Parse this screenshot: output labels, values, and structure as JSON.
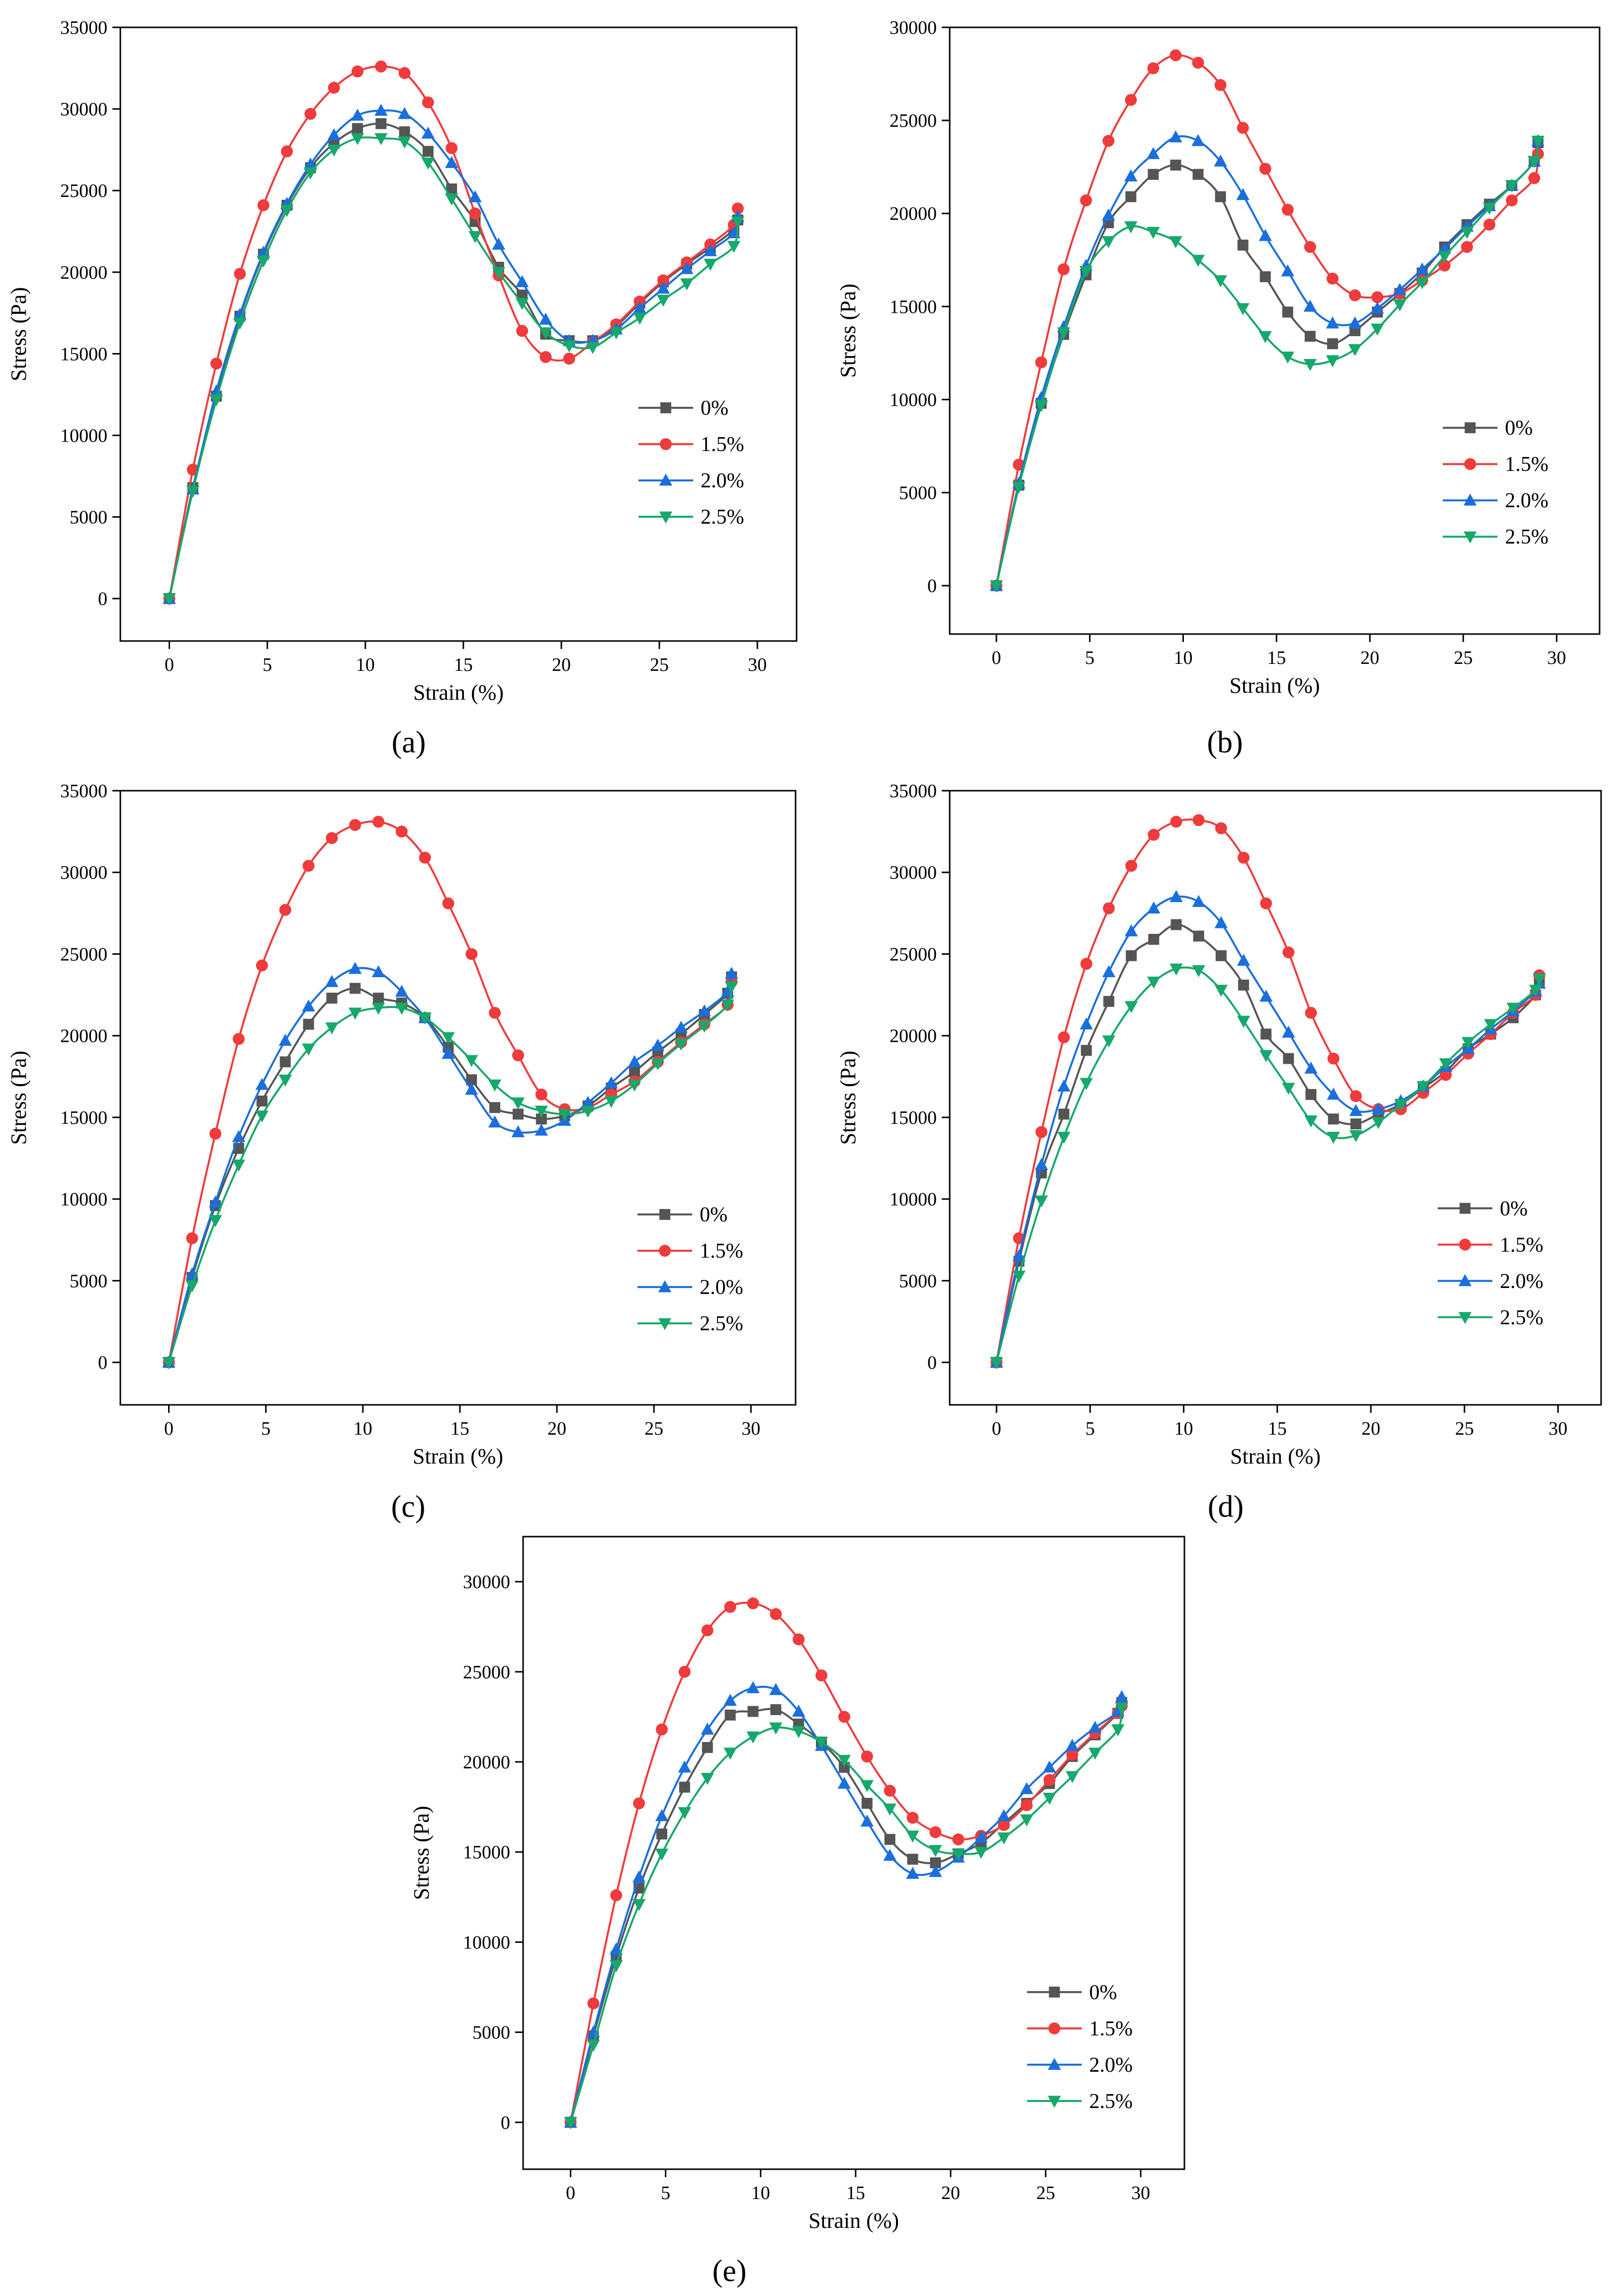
{
  "styles": {
    "colors": {
      "0%": "#555555",
      "1.5%": "#ef3b3b",
      "2.0%": "#1a6fdc",
      "2.5%": "#17a86b"
    },
    "markers": {
      "0%": "square",
      "1.5%": "circle",
      "2.0%": "triangle-up",
      "2.5%": "triangle-down"
    }
  },
  "chart_data": [
    {
      "label": "(a)",
      "type": "line",
      "xlabel": "Strain (%)",
      "ylabel": "Stress (Pa)",
      "xlim": [
        -2.5,
        32
      ],
      "ylim": [
        -2600,
        35000
      ],
      "xticks": [
        0,
        5,
        10,
        15,
        20,
        25,
        30
      ],
      "yticks": [
        0,
        5000,
        10000,
        15000,
        20000,
        25000,
        30000,
        35000
      ],
      "legend_position": "right-middle",
      "legend_anchor": [
        0.95,
        0.62
      ],
      "x": [
        0,
        1.2,
        2.4,
        3.6,
        4.8,
        6.0,
        7.2,
        8.4,
        9.6,
        10.8,
        12.0,
        13.2,
        14.4,
        15.6,
        16.8,
        18.0,
        19.2,
        20.4,
        21.6,
        22.8,
        24.0,
        25.2,
        26.4,
        27.6,
        28.8,
        29.0
      ],
      "series": [
        {
          "name": "0%",
          "values": [
            0,
            6800,
            12400,
            17300,
            21100,
            24100,
            26400,
            27900,
            28800,
            29100,
            28600,
            27400,
            25100,
            23100,
            20300,
            18600,
            16200,
            15800,
            15800,
            16700,
            18100,
            19400,
            20500,
            21500,
            22600,
            23200
          ]
        },
        {
          "name": "1.5%",
          "values": [
            0,
            7900,
            14400,
            19900,
            24100,
            27400,
            29700,
            31300,
            32300,
            32600,
            32200,
            30400,
            27600,
            23600,
            19800,
            16400,
            14800,
            14700,
            15700,
            16800,
            18200,
            19500,
            20600,
            21700,
            22900,
            23900
          ]
        },
        {
          "name": "2.0%",
          "values": [
            0,
            6700,
            12700,
            17400,
            21200,
            24200,
            26600,
            28400,
            29600,
            29900,
            29700,
            28500,
            26700,
            24600,
            21700,
            19400,
            17100,
            15800,
            15800,
            16500,
            17800,
            19000,
            20200,
            21300,
            22400,
            23400
          ]
        },
        {
          "name": "2.5%",
          "values": [
            0,
            6600,
            12200,
            16900,
            20700,
            23800,
            26100,
            27500,
            28200,
            28200,
            28000,
            26700,
            24500,
            22200,
            20000,
            18100,
            16300,
            15500,
            15400,
            16300,
            17200,
            18300,
            19300,
            20500,
            21600,
            23100
          ]
        }
      ]
    },
    {
      "label": "(b)",
      "type": "line",
      "xlabel": "Strain (%)",
      "ylabel": "Stress (Pa)",
      "xlim": [
        -2.5,
        32.3
      ],
      "ylim": [
        -2600,
        30000
      ],
      "xticks": [
        0,
        5,
        10,
        15,
        20,
        25,
        30
      ],
      "yticks": [
        0,
        5000,
        10000,
        15000,
        20000,
        25000,
        30000
      ],
      "legend_position": "right-middle",
      "legend_anchor": [
        0.95,
        0.66
      ],
      "x": [
        0,
        1.2,
        2.4,
        3.6,
        4.8,
        6.0,
        7.2,
        8.4,
        9.6,
        10.8,
        12.0,
        13.2,
        14.4,
        15.6,
        16.8,
        18.0,
        19.2,
        20.4,
        21.6,
        22.8,
        24.0,
        25.2,
        26.4,
        27.6,
        28.8,
        29.0
      ],
      "series": [
        {
          "name": "0%",
          "values": [
            0,
            5400,
            9800,
            13500,
            16700,
            19500,
            20900,
            22100,
            22600,
            22100,
            20900,
            18300,
            16600,
            14700,
            13400,
            13000,
            13700,
            14700,
            15700,
            16800,
            18200,
            19400,
            20500,
            21500,
            22800,
            23800
          ]
        },
        {
          "name": "1.5%",
          "values": [
            0,
            6500,
            12000,
            17000,
            20700,
            23900,
            26100,
            27800,
            28500,
            28100,
            26900,
            24600,
            22400,
            20200,
            18200,
            16500,
            15600,
            15500,
            15700,
            16400,
            17200,
            18200,
            19400,
            20700,
            21900,
            23200
          ]
        },
        {
          "name": "2.0%",
          "values": [
            0,
            5500,
            10100,
            13900,
            17200,
            19900,
            22000,
            23200,
            24100,
            23900,
            22800,
            21000,
            18800,
            16900,
            15000,
            14100,
            14100,
            14900,
            15900,
            17000,
            18100,
            19300,
            20400,
            21500,
            22800,
            23900
          ]
        },
        {
          "name": "2.5%",
          "values": [
            0,
            5300,
            9700,
            13600,
            16900,
            18500,
            19300,
            19000,
            18500,
            17500,
            16400,
            14900,
            13400,
            12300,
            11900,
            12100,
            12700,
            13800,
            15100,
            16300,
            17700,
            19000,
            20300,
            21500,
            22800,
            23900
          ]
        }
      ]
    },
    {
      "label": "(c)",
      "type": "line",
      "xlabel": "Strain (%)",
      "ylabel": "Stress (Pa)",
      "xlim": [
        -2.5,
        32.3
      ],
      "ylim": [
        -2600,
        35000
      ],
      "xticks": [
        0,
        5,
        10,
        15,
        20,
        25,
        30
      ],
      "yticks": [
        0,
        5000,
        10000,
        15000,
        20000,
        25000,
        30000,
        35000
      ],
      "legend_position": "right-middle",
      "legend_anchor": [
        0.95,
        0.69
      ],
      "x": [
        0,
        1.2,
        2.4,
        3.6,
        4.8,
        6.0,
        7.2,
        8.4,
        9.6,
        10.8,
        12.0,
        13.2,
        14.4,
        15.6,
        16.8,
        18.0,
        19.2,
        20.4,
        21.6,
        22.8,
        24.0,
        25.2,
        26.4,
        27.6,
        28.8,
        29.0
      ],
      "series": [
        {
          "name": "0%",
          "values": [
            0,
            5200,
            9600,
            13100,
            16000,
            18400,
            20700,
            22300,
            22900,
            22300,
            22000,
            21100,
            19300,
            17300,
            15600,
            15200,
            14900,
            15100,
            15700,
            16800,
            17800,
            19000,
            20100,
            21300,
            22600,
            23600
          ]
        },
        {
          "name": "1.5%",
          "values": [
            0,
            7600,
            14000,
            19800,
            24300,
            27700,
            30400,
            32100,
            32900,
            33100,
            32500,
            30900,
            28100,
            25000,
            21400,
            18800,
            16400,
            15500,
            15600,
            16400,
            17200,
            18400,
            19600,
            20700,
            21900,
            23300
          ]
        },
        {
          "name": "2.0%",
          "values": [
            0,
            5400,
            9800,
            13800,
            17000,
            19700,
            21800,
            23300,
            24100,
            23900,
            22700,
            21100,
            18900,
            16700,
            14700,
            14100,
            14200,
            14800,
            15900,
            17100,
            18400,
            19400,
            20500,
            21500,
            22700,
            23800
          ]
        },
        {
          "name": "2.5%",
          "values": [
            0,
            4700,
            8700,
            12100,
            15100,
            17300,
            19200,
            20500,
            21400,
            21700,
            21700,
            21100,
            19900,
            18500,
            17000,
            15900,
            15400,
            15200,
            15400,
            16000,
            17000,
            18300,
            19500,
            20600,
            21900,
            23000
          ]
        }
      ]
    },
    {
      "label": "(d)",
      "type": "line",
      "xlabel": "Strain (%)",
      "ylabel": "Stress (Pa)",
      "xlim": [
        -2.5,
        32.3
      ],
      "ylim": [
        -2600,
        35000
      ],
      "xticks": [
        0,
        5,
        10,
        15,
        20,
        25,
        30
      ],
      "yticks": [
        0,
        5000,
        10000,
        15000,
        20000,
        25000,
        30000,
        35000
      ],
      "legend_position": "right-middle",
      "legend_anchor": [
        0.94,
        0.68
      ],
      "x": [
        0,
        1.2,
        2.4,
        3.6,
        4.8,
        6.0,
        7.2,
        8.4,
        9.6,
        10.8,
        12.0,
        13.2,
        14.4,
        15.6,
        16.8,
        18.0,
        19.2,
        20.4,
        21.6,
        22.8,
        24.0,
        25.2,
        26.4,
        27.6,
        28.8,
        29.0
      ],
      "series": [
        {
          "name": "0%",
          "values": [
            0,
            6200,
            11600,
            15200,
            19100,
            22100,
            24900,
            25900,
            26800,
            26100,
            24900,
            23100,
            20100,
            18600,
            16400,
            14900,
            14600,
            15200,
            15800,
            16800,
            17800,
            19200,
            20100,
            21100,
            22500,
            23400
          ]
        },
        {
          "name": "1.5%",
          "values": [
            0,
            7600,
            14100,
            19900,
            24400,
            27800,
            30400,
            32300,
            33100,
            33200,
            32700,
            30900,
            28100,
            25100,
            21400,
            18600,
            16300,
            15500,
            15500,
            16500,
            17600,
            18900,
            20100,
            21400,
            22500,
            23700
          ]
        },
        {
          "name": "2.0%",
          "values": [
            0,
            6500,
            12100,
            16900,
            20700,
            23900,
            26400,
            27800,
            28500,
            28200,
            26900,
            24600,
            22400,
            20200,
            18000,
            16400,
            15400,
            15500,
            16000,
            16900,
            18100,
            19200,
            20400,
            21500,
            22700,
            23200
          ]
        },
        {
          "name": "2.5%",
          "values": [
            0,
            5300,
            9900,
            13800,
            17100,
            19700,
            21800,
            23300,
            24100,
            24000,
            22800,
            20900,
            18800,
            16800,
            14800,
            13800,
            13900,
            14700,
            15800,
            16900,
            18300,
            19600,
            20700,
            21700,
            22800,
            23500
          ]
        }
      ]
    },
    {
      "label": "(e)",
      "type": "line",
      "xlabel": "Strain (%)",
      "ylabel": "Stress (Pa)",
      "xlim": [
        -2.5,
        32.3
      ],
      "ylim": [
        -2600,
        32500
      ],
      "xticks": [
        0,
        5,
        10,
        15,
        20,
        25,
        30
      ],
      "yticks": [
        0,
        5000,
        10000,
        15000,
        20000,
        25000,
        30000
      ],
      "legend_position": "right-middle",
      "legend_anchor": [
        0.95,
        0.72
      ],
      "x": [
        0,
        1.2,
        2.4,
        3.6,
        4.8,
        6.0,
        7.2,
        8.4,
        9.6,
        10.8,
        12.0,
        13.2,
        14.4,
        15.6,
        16.8,
        18.0,
        19.2,
        20.4,
        21.6,
        22.8,
        24.0,
        25.2,
        26.4,
        27.6,
        28.8,
        29.0
      ],
      "series": [
        {
          "name": "0%",
          "values": [
            0,
            4800,
            9200,
            13000,
            16000,
            18600,
            20800,
            22600,
            22800,
            22900,
            22100,
            21100,
            19700,
            17700,
            15700,
            14600,
            14400,
            14900,
            15500,
            16600,
            17700,
            18800,
            20300,
            21500,
            22700,
            23300
          ]
        },
        {
          "name": "1.5%",
          "values": [
            0,
            6600,
            12600,
            17700,
            21800,
            25000,
            27300,
            28600,
            28800,
            28200,
            26800,
            24800,
            22500,
            20300,
            18400,
            16900,
            16100,
            15700,
            15900,
            16500,
            17600,
            19000,
            20400,
            21600,
            22700,
            23100
          ]
        },
        {
          "name": "2.0%",
          "values": [
            0,
            5000,
            9600,
            13600,
            17000,
            19700,
            21800,
            23400,
            24100,
            24000,
            22800,
            20900,
            18800,
            16700,
            14800,
            13800,
            13900,
            14700,
            15800,
            17000,
            18500,
            19700,
            20900,
            21900,
            22800,
            23600
          ]
        },
        {
          "name": "2.5%",
          "values": [
            0,
            4300,
            8700,
            12100,
            14900,
            17200,
            19100,
            20500,
            21400,
            21900,
            21700,
            21100,
            20100,
            18700,
            17400,
            15900,
            15100,
            14900,
            15000,
            15800,
            16800,
            18000,
            19200,
            20500,
            21800,
            23000
          ]
        }
      ]
    }
  ]
}
